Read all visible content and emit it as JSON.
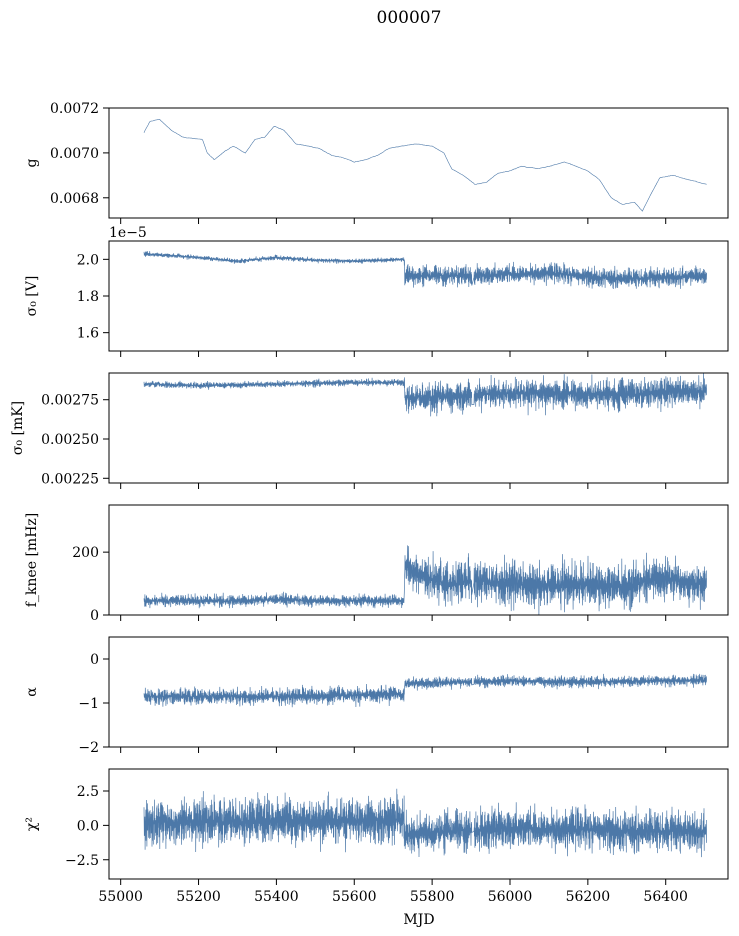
{
  "title": "000007",
  "chart_data": {
    "type": "line",
    "xlabel": "MJD",
    "xlim": [
      54970,
      56560
    ],
    "xticks": [
      55000,
      55200,
      55400,
      55600,
      55800,
      56000,
      56200,
      56400
    ],
    "x_start": 55060,
    "x_end": 56505,
    "gap_x": 55905,
    "color": "#4c78a8",
    "panels": [
      {
        "ylabel": "g",
        "ylim": [
          0.00671,
          0.0072
        ],
        "yticks": [
          0.0068,
          0.007,
          0.0072
        ],
        "ytick_labels": [
          "0.0068",
          "0.0070",
          "0.0072"
        ],
        "offset_text": "",
        "style": "line",
        "trend": [
          [
            55060,
            0.00709
          ],
          [
            55075,
            0.00714
          ],
          [
            55100,
            0.00715
          ],
          [
            55130,
            0.0071
          ],
          [
            55160,
            0.00707
          ],
          [
            55210,
            0.00706
          ],
          [
            55222,
            0.007
          ],
          [
            55240,
            0.00697
          ],
          [
            55270,
            0.00701
          ],
          [
            55290,
            0.00703
          ],
          [
            55320,
            0.007
          ],
          [
            55345,
            0.00706
          ],
          [
            55370,
            0.00707
          ],
          [
            55395,
            0.00712
          ],
          [
            55420,
            0.0071
          ],
          [
            55450,
            0.00704
          ],
          [
            55480,
            0.00703
          ],
          [
            55510,
            0.00702
          ],
          [
            55540,
            0.00699
          ],
          [
            55570,
            0.00698
          ],
          [
            55600,
            0.00696
          ],
          [
            55630,
            0.00697
          ],
          [
            55660,
            0.00699
          ],
          [
            55690,
            0.00702
          ],
          [
            55720,
            0.00703
          ],
          [
            55760,
            0.00704
          ],
          [
            55800,
            0.00703
          ],
          [
            55830,
            0.007
          ],
          [
            55850,
            0.00693
          ],
          [
            55880,
            0.0069
          ],
          [
            55910,
            0.00686
          ],
          [
            55940,
            0.00687
          ],
          [
            55970,
            0.00691
          ],
          [
            56000,
            0.00692
          ],
          [
            56030,
            0.00694
          ],
          [
            56070,
            0.00693
          ],
          [
            56100,
            0.00694
          ],
          [
            56140,
            0.00696
          ],
          [
            56170,
            0.00694
          ],
          [
            56200,
            0.00692
          ],
          [
            56230,
            0.00688
          ],
          [
            56260,
            0.0068
          ],
          [
            56290,
            0.00677
          ],
          [
            56320,
            0.00678
          ],
          [
            56340,
            0.00674
          ],
          [
            56360,
            0.00681
          ],
          [
            56385,
            0.00689
          ],
          [
            56420,
            0.0069
          ],
          [
            56460,
            0.00688
          ],
          [
            56505,
            0.00686
          ]
        ],
        "noise": [
          1.5e-06,
          1.5e-06
        ]
      },
      {
        "ylabel": "σ₀ [V]",
        "ylim": [
          1.5,
          2.1
        ],
        "yticks": [
          1.6,
          1.8,
          2.0
        ],
        "ytick_labels": [
          "1.6",
          "1.8",
          "2.0"
        ],
        "offset_text": "1e−5",
        "style": "band",
        "trend": [
          [
            55060,
            2.03
          ],
          [
            55200,
            2.01
          ],
          [
            55300,
            1.99
          ],
          [
            55400,
            2.01
          ],
          [
            55500,
            1.995
          ],
          [
            55600,
            1.99
          ],
          [
            55728,
            2.0
          ],
          [
            55730,
            1.91
          ],
          [
            55800,
            1.91
          ],
          [
            55900,
            1.91
          ],
          [
            56000,
            1.92
          ],
          [
            56100,
            1.925
          ],
          [
            56200,
            1.905
          ],
          [
            56300,
            1.895
          ],
          [
            56400,
            1.9
          ],
          [
            56505,
            1.91
          ]
        ],
        "noise": [
          0.012,
          0.05
        ]
      },
      {
        "ylabel": "σ₀ [mK]",
        "ylim": [
          0.00222,
          0.00292
        ],
        "yticks": [
          0.00225,
          0.0025,
          0.00275
        ],
        "ytick_labels": [
          "0.00225",
          "0.00250",
          "0.00275"
        ],
        "offset_text": "",
        "style": "band",
        "trend": [
          [
            55060,
            0.00285
          ],
          [
            55200,
            0.00284
          ],
          [
            55400,
            0.00285
          ],
          [
            55600,
            0.00286
          ],
          [
            55728,
            0.00286
          ],
          [
            55730,
            0.00276
          ],
          [
            55900,
            0.00278
          ],
          [
            56000,
            0.00279
          ],
          [
            56200,
            0.00279
          ],
          [
            56300,
            0.00278
          ],
          [
            56400,
            0.0028
          ],
          [
            56505,
            0.0028
          ]
        ],
        "noise": [
          2e-05,
          9e-05
        ]
      },
      {
        "ylabel": "f_knee [mHz]",
        "ylim": [
          0,
          350
        ],
        "yticks": [
          0,
          200
        ],
        "ytick_labels": [
          "0",
          "200"
        ],
        "offset_text": "",
        "style": "band",
        "trend": [
          [
            55060,
            45
          ],
          [
            55300,
            45
          ],
          [
            55400,
            50
          ],
          [
            55500,
            45
          ],
          [
            55728,
            45
          ],
          [
            55730,
            160
          ],
          [
            55760,
            130
          ],
          [
            55850,
            95
          ],
          [
            55905,
            110
          ],
          [
            56000,
            100
          ],
          [
            56100,
            95
          ],
          [
            56200,
            95
          ],
          [
            56300,
            90
          ],
          [
            56350,
            110
          ],
          [
            56400,
            115
          ],
          [
            56505,
            95
          ]
        ],
        "noise": [
          18,
          65
        ]
      },
      {
        "ylabel": "α",
        "ylim": [
          -2,
          0.5
        ],
        "yticks": [
          -2,
          -1,
          0
        ],
        "ytick_labels": [
          "−2",
          "−1",
          "0"
        ],
        "offset_text": "",
        "style": "band",
        "trend": [
          [
            55060,
            -0.85
          ],
          [
            55300,
            -0.85
          ],
          [
            55450,
            -0.85
          ],
          [
            55600,
            -0.82
          ],
          [
            55728,
            -0.8
          ],
          [
            55730,
            -0.55
          ],
          [
            56000,
            -0.5
          ],
          [
            56200,
            -0.52
          ],
          [
            56505,
            -0.48
          ]
        ],
        "noise": [
          0.18,
          0.12
        ]
      },
      {
        "ylabel": "χ²",
        "ylim": [
          -3.9,
          4.1
        ],
        "yticks": [
          -2.5,
          0,
          2.5
        ],
        "ytick_labels": [
          "−2.5",
          "0.0",
          "2.5"
        ],
        "offset_text": "",
        "style": "band",
        "trend": [
          [
            55060,
            0.2
          ],
          [
            55400,
            0.3
          ],
          [
            55728,
            0.4
          ],
          [
            55730,
            -0.6
          ],
          [
            56000,
            -0.2
          ],
          [
            56300,
            -0.4
          ],
          [
            56505,
            -0.5
          ]
        ],
        "noise": [
          1.6,
          1.4
        ]
      }
    ]
  }
}
